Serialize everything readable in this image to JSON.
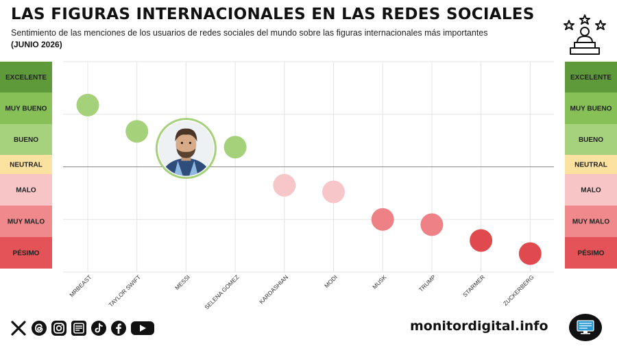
{
  "header": {
    "title": "LAS FIGURAS INTERNACIONALES EN LAS REDES SOCIALES",
    "subtitle": "Sentimiento de las menciones de los usuarios de redes sociales del mundo sobre las figuras internacionales más importantes",
    "date": "(JUNIO 2026)"
  },
  "footer": {
    "site": "monitordigital.info"
  },
  "social_icons": [
    "x-icon",
    "threads-icon",
    "instagram-icon",
    "news-icon",
    "tiktok-icon",
    "facebook-icon",
    "youtube-icon"
  ],
  "chart_data": {
    "type": "scatter",
    "title": "LAS FIGURAS INTERNACIONALES EN LAS REDES SOCIALES",
    "categories": [
      "MRBEAST",
      "TAYLOR SWIFT",
      "MESSI",
      "SELENA GOMEZ",
      "KARDASHIAN",
      "MODI",
      "MUSK",
      "TRUMP",
      "STARMER",
      "ZUCKERBERG"
    ],
    "scale": [
      "EXCELENTE",
      "MUY BUENO",
      "BUENO",
      "NEUTRAL",
      "MALO",
      "MUY MALO",
      "PÉSIMO"
    ],
    "scale_colors": [
      "#5e9a3a",
      "#86c057",
      "#a6d17d",
      "#fce2a0",
      "#f8c5c7",
      "#f0898c",
      "#e45357"
    ],
    "values": [
      2.35,
      1.35,
      0.7,
      0.75,
      -0.7,
      -0.95,
      -2.0,
      -2.2,
      -2.8,
      -3.3
    ],
    "point_colors": [
      "#a4d17a",
      "#a4d17a",
      "#a4d17a",
      "#a4d17a",
      "#f7c6c8",
      "#f7c6c8",
      "#ee8185",
      "#ee8185",
      "#e04a4f",
      "#e04a4f"
    ],
    "highlight": "MESSI",
    "ylim": [
      -4,
      4
    ],
    "grid": true
  }
}
